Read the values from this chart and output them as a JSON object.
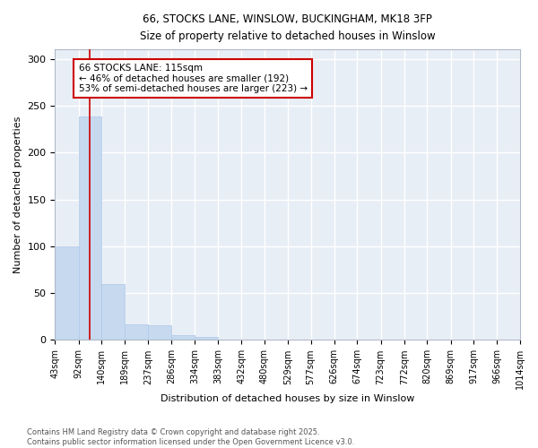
{
  "title_line1": "66, STOCKS LANE, WINSLOW, BUCKINGHAM, MK18 3FP",
  "title_line2": "Size of property relative to detached houses in Winslow",
  "xlabel": "Distribution of detached houses by size in Winslow",
  "ylabel": "Number of detached properties",
  "bin_edges": [
    43,
    92,
    140,
    189,
    237,
    286,
    334,
    383,
    432,
    480,
    529,
    577,
    626,
    674,
    723,
    772,
    820,
    869,
    917,
    966,
    1014
  ],
  "bar_heights": [
    100,
    238,
    60,
    17,
    16,
    5,
    3,
    0,
    0,
    0,
    0,
    0,
    0,
    0,
    0,
    0,
    0,
    0,
    0,
    0
  ],
  "bar_color": "#c6d9ef",
  "bar_edgecolor": "#aec9e8",
  "vline_x": 115,
  "vline_color": "#cc0000",
  "annotation_title": "66 STOCKS LANE: 115sqm",
  "annotation_line2": "← 46% of detached houses are smaller (192)",
  "annotation_line3": "53% of semi-detached houses are larger (223) →",
  "annotation_box_color": "#cc0000",
  "ylim": [
    0,
    310
  ],
  "yticks": [
    0,
    50,
    100,
    150,
    200,
    250,
    300
  ],
  "background_color": "#e8eef5",
  "footnote_line1": "Contains HM Land Registry data © Crown copyright and database right 2025.",
  "footnote_line2": "Contains public sector information licensed under the Open Government Licence v3.0."
}
